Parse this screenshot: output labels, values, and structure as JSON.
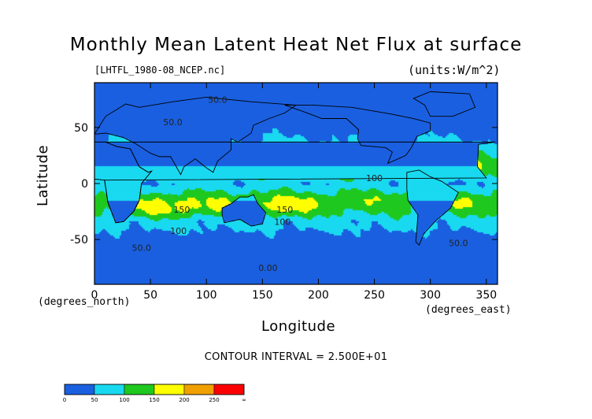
{
  "chart_data": {
    "type": "heatmap",
    "title": "Monthly Mean Latent Heat Net Flux at surface",
    "source_label": "[LHTFL_1980-08_NCEP.nc]",
    "units_label": "(units:W/m^2)",
    "xlabel": "Longitude",
    "ylabel": "Latitude",
    "x_unit_label": "(degrees_east)",
    "y_unit_label": "(degrees_north)",
    "xlim": [
      0,
      360
    ],
    "ylim": [
      -90,
      90
    ],
    "x_ticks": [
      0,
      50,
      100,
      150,
      200,
      250,
      300,
      350
    ],
    "y_ticks": [
      -50,
      0,
      50
    ],
    "contour_interval_text": "CONTOUR INTERVAL = 2.500E+01",
    "colorbar": {
      "levels": [
        "0",
        "50",
        "100",
        "150",
        "200",
        "250",
        "∞"
      ],
      "colors": [
        "#1a5fe0",
        "#19d9f0",
        "#1fc81f",
        "#ffff00",
        "#f0a000",
        "#ff0000"
      ]
    },
    "contour_labels": [
      {
        "text": "50.0",
        "lon": 110,
        "lat": 72
      },
      {
        "text": "50.0",
        "lon": 70,
        "lat": 52
      },
      {
        "text": "100",
        "lon": 250,
        "lat": 2
      },
      {
        "text": "150",
        "lon": 78,
        "lat": -26
      },
      {
        "text": "150",
        "lon": 170,
        "lat": -26
      },
      {
        "text": "100",
        "lon": 168,
        "lat": -37
      },
      {
        "text": "100",
        "lon": 75,
        "lat": -45
      },
      {
        "text": "50.0",
        "lon": 42,
        "lat": -60
      },
      {
        "text": "50.0",
        "lon": 325,
        "lat": -56
      },
      {
        "text": "0.00",
        "lon": 155,
        "lat": -78
      }
    ]
  }
}
